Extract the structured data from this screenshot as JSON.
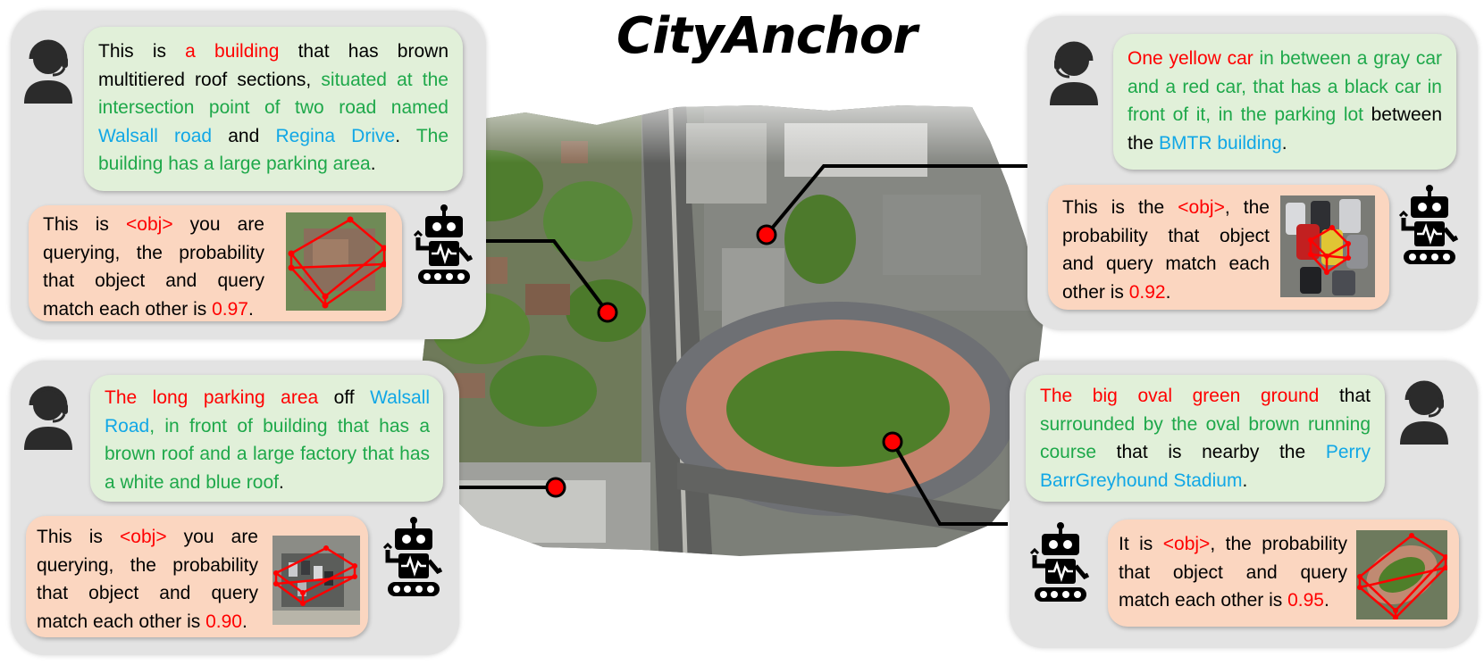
{
  "title": "CityAnchor",
  "colors": {
    "highlight_red": "#ff0000",
    "highlight_green": "#1ea84a",
    "highlight_blue": "#11a7e6",
    "green_bubble": "#e1f0d9",
    "orange_bubble": "#fbd6c0",
    "panel": "#e3e3e3"
  },
  "icons": {
    "user": "user-headset-icon",
    "agent": "robot-icon"
  },
  "tl": {
    "query": {
      "t1": "This is ",
      "t2": "a building",
      "t3": " that has brown multitiered roof sections, ",
      "t4": "situated at the intersection point of two road named ",
      "t5": "Walsall road",
      "t6": " and ",
      "t7": "Regina Drive",
      "t8": ". ",
      "t9": "The building has a large parking area",
      "t10": "."
    },
    "answer": {
      "a1": "This is ",
      "a2": "<obj>",
      "a3": " you are querying, the probability that object and query match each other is ",
      "a4": "0.97",
      "a5": "."
    }
  },
  "tr": {
    "query": {
      "t1": "One yellow car",
      "t2": " in between a gray car and a red car, that has a black car in front of it, in the parking lot",
      "t3": " between the ",
      "t4": "BMTR building",
      "t5": "."
    },
    "answer": {
      "a1": "This is the ",
      "a2": "<obj>",
      "a3": ", the probability that object and query match each other is ",
      "a4": "0.92",
      "a5": "."
    }
  },
  "bl": {
    "query": {
      "t1": "The long parking area",
      "t2": " off ",
      "t3": "Walsall Road",
      "t4": ", in front of building that has a brown roof and a large factory that has a white and blue roof",
      "t5": "."
    },
    "answer": {
      "a1": "This is ",
      "a2": "<obj>",
      "a3": " you are querying, the probability that object and query match each other is ",
      "a4": "0.90",
      "a5": "."
    }
  },
  "br": {
    "query": {
      "t1": "The big oval green ground",
      "t2": " that ",
      "t3": "surrounded by the oval brown running course",
      "t4": " that is nearby the ",
      "t5": "Perry BarrGreyhound Stadium",
      "t6": "."
    },
    "answer": {
      "a1": "It is ",
      "a2": "<obj>",
      "a3": ", the probability that object and query match each other is ",
      "a4": "0.95",
      "a5": "."
    }
  }
}
